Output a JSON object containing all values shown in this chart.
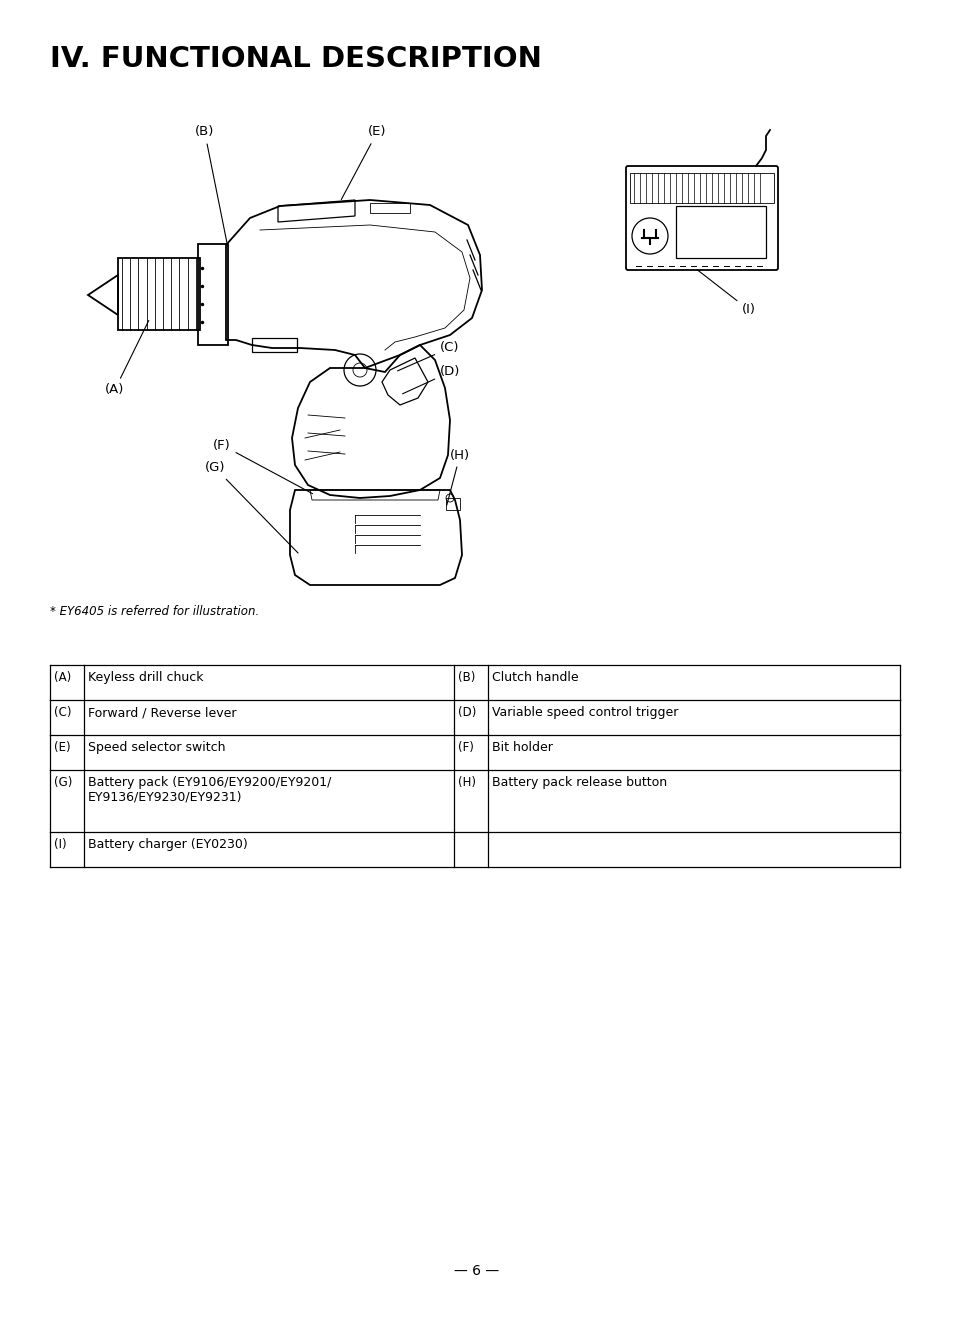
{
  "title": "IV. FUNCTIONAL DESCRIPTION",
  "footnote": "* EY6405 is referred for illustration.",
  "page_number": "— 6 —",
  "background_color": "#ffffff",
  "table_rows": [
    [
      "(A)",
      "Keyless drill chuck",
      "(B)",
      "Clutch handle"
    ],
    [
      "(C)",
      "Forward / Reverse lever",
      "(D)",
      "Variable speed control trigger"
    ],
    [
      "(E)",
      "Speed selector switch",
      "(F)",
      "Bit holder"
    ],
    [
      "(G)",
      "Battery pack (EY9106/EY9200/EY9201/\nEY9136/EY9230/EY9231)",
      "(H)",
      "Battery pack release button"
    ],
    [
      "(I)",
      "Battery charger (EY0230)",
      "",
      ""
    ]
  ]
}
